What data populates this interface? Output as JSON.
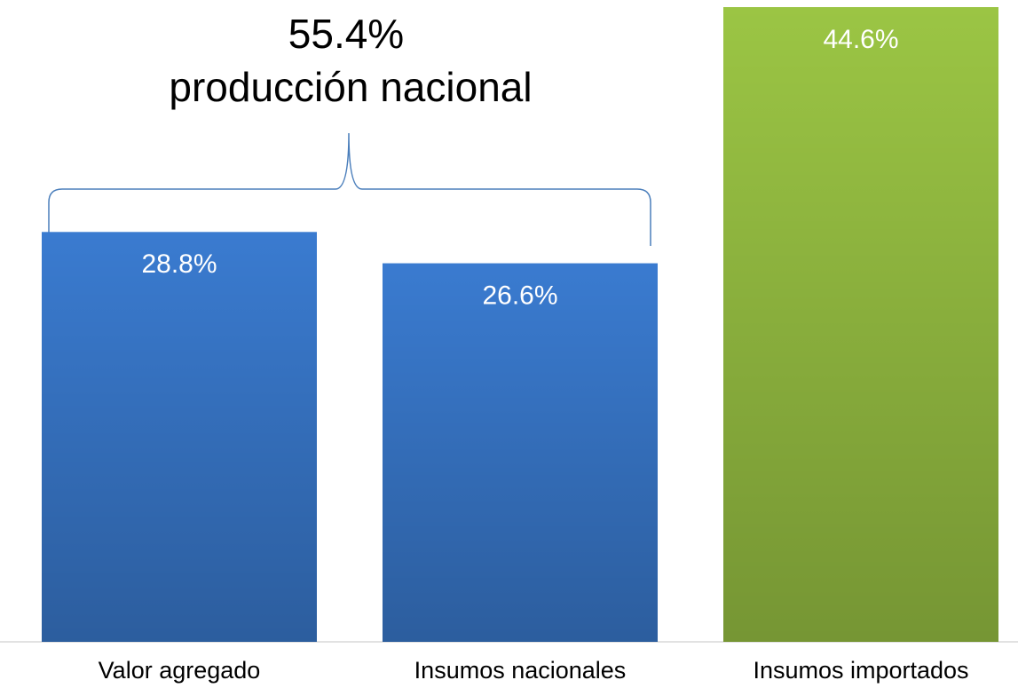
{
  "chart_data": {
    "type": "bar",
    "categories": [
      "Valor agregado",
      "Insumos nacionales",
      "Insumos importados"
    ],
    "values": [
      28.8,
      26.6,
      44.6
    ],
    "value_labels": [
      "28.8%",
      "26.6%",
      "44.6%"
    ],
    "colors": [
      "#3a7bd0",
      "#3a7bd0",
      "#9bc544"
    ],
    "ylim": [
      0,
      44.6
    ],
    "annotation": [
      "55.4%",
      "producción nacional"
    ]
  }
}
